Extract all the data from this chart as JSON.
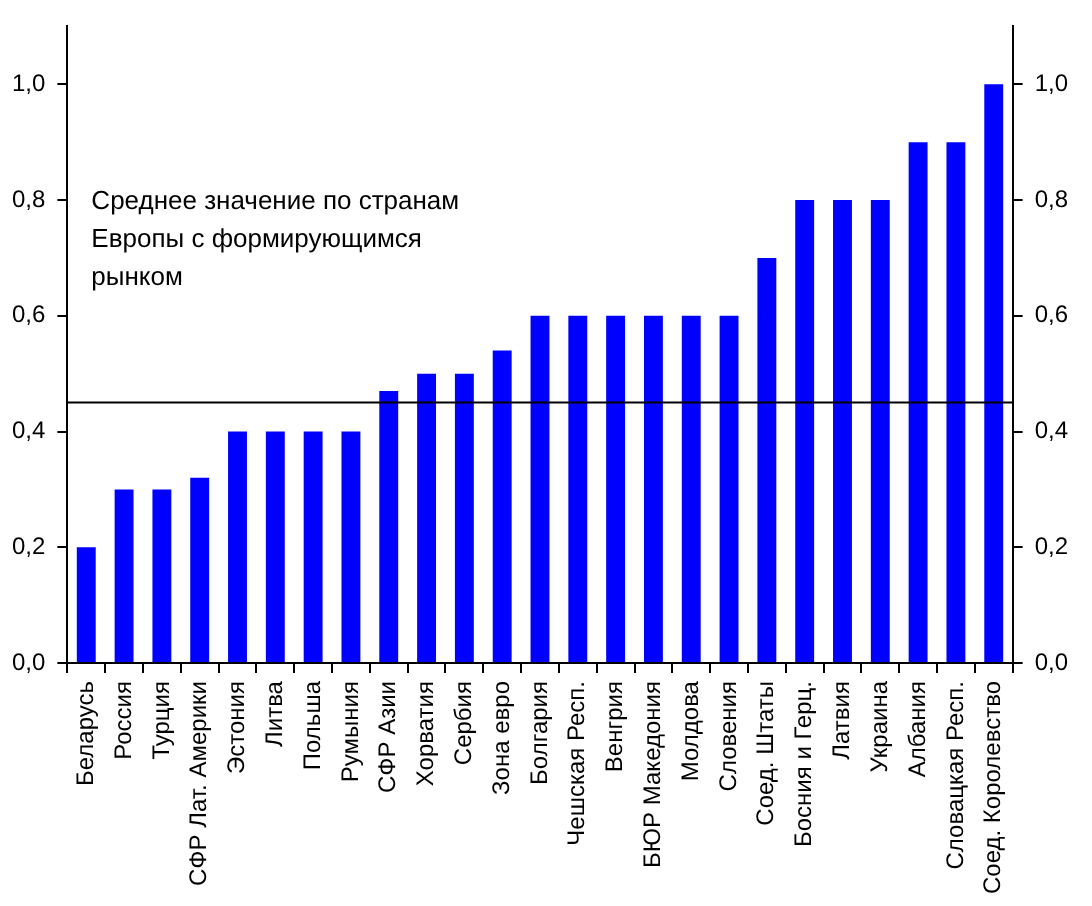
{
  "chart_data": {
    "type": "bar",
    "categories": [
      "Беларусь",
      "Россия",
      "Турция",
      "СФР Лат. Америки",
      "Эстония",
      "Литва",
      "Польша",
      "Румыния",
      "СФР Азии",
      "Хорватия",
      "Сербия",
      "Зона евро",
      "Болгария",
      "Чешская Респ.",
      "Венгрия",
      "БЮР Македония",
      "Молдова",
      "Словения",
      "Соед. Штаты",
      "Босния и Герц.",
      "Латвия",
      "Украина",
      "Албания",
      "Словацкая Респ.",
      "Соед. Королевство"
    ],
    "values": [
      0.2,
      0.3,
      0.3,
      0.32,
      0.4,
      0.4,
      0.4,
      0.4,
      0.47,
      0.5,
      0.5,
      0.54,
      0.6,
      0.6,
      0.6,
      0.6,
      0.6,
      0.6,
      0.7,
      0.8,
      0.8,
      0.8,
      0.9,
      0.9,
      1.0
    ],
    "color": "#0000ff",
    "ylim": [
      0,
      1.1
    ],
    "yticks": [
      {
        "value": 0,
        "label": "0,0"
      },
      {
        "value": 0.2,
        "label": "0,2"
      },
      {
        "value": 0.4,
        "label": "0,4"
      },
      {
        "value": 0.6,
        "label": "0,6"
      },
      {
        "value": 0.8,
        "label": "0,8"
      },
      {
        "value": 1,
        "label": "1,0"
      }
    ],
    "y2lim": [
      0,
      1.1
    ],
    "y2ticks": [
      {
        "value": 0,
        "label": "0,0"
      },
      {
        "value": 0.2,
        "label": "0,2"
      },
      {
        "value": 0.4,
        "label": "0,4"
      },
      {
        "value": 0.6,
        "label": "0,6"
      },
      {
        "value": 0.8,
        "label": "0,8"
      },
      {
        "value": 1,
        "label": "1,0"
      }
    ],
    "ref_lines": [
      {
        "axis": "y",
        "value": 0.45,
        "label": "Среднее значение по странам Европы с формирующимся рынком",
        "color": "#000000"
      }
    ],
    "grid": false,
    "legend": false
  }
}
